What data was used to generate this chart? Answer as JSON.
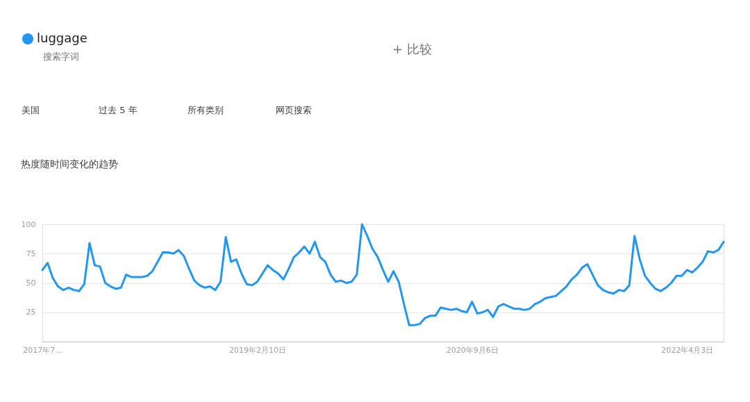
{
  "chart_data": {
    "type": "line",
    "title": "热度随时间变化的趋势",
    "x": [
      "2017-07-16",
      "2017-07-30",
      "2017-08-13",
      "2017-08-27",
      "2017-09-10",
      "2017-09-24",
      "2017-10-08",
      "2017-10-22",
      "2017-11-05",
      "2017-11-19",
      "2017-12-03",
      "2017-12-17",
      "2017-12-31",
      "2018-01-14",
      "2018-01-28",
      "2018-02-11",
      "2018-02-25",
      "2018-03-11",
      "2018-03-25",
      "2018-04-08",
      "2018-04-22",
      "2018-05-06",
      "2018-05-20",
      "2018-06-03",
      "2018-06-17",
      "2018-07-01",
      "2018-07-15",
      "2018-07-29",
      "2018-08-12",
      "2018-08-26",
      "2018-09-09",
      "2018-09-23",
      "2018-10-07",
      "2018-10-21",
      "2018-11-04",
      "2018-11-18",
      "2018-12-02",
      "2018-12-16",
      "2018-12-30",
      "2019-01-13",
      "2019-01-27",
      "2019-02-10",
      "2019-02-24",
      "2019-03-10",
      "2019-03-24",
      "2019-04-07",
      "2019-04-21",
      "2019-05-05",
      "2019-05-19",
      "2019-06-02",
      "2019-06-16",
      "2019-06-30",
      "2019-07-14",
      "2019-07-28",
      "2019-08-11",
      "2019-08-25",
      "2019-09-08",
      "2019-09-22",
      "2019-10-06",
      "2019-10-20",
      "2019-11-03",
      "2019-11-17",
      "2019-12-01",
      "2019-12-15",
      "2019-12-29",
      "2020-01-12",
      "2020-01-26",
      "2020-02-09",
      "2020-02-23",
      "2020-03-08",
      "2020-03-22",
      "2020-04-05",
      "2020-04-19",
      "2020-05-03",
      "2020-05-17",
      "2020-05-31",
      "2020-06-14",
      "2020-06-28",
      "2020-07-12",
      "2020-07-26",
      "2020-08-09",
      "2020-08-23",
      "2020-09-06",
      "2020-09-20",
      "2020-10-04",
      "2020-10-18",
      "2020-11-01",
      "2020-11-15",
      "2020-11-29",
      "2020-12-13",
      "2020-12-27",
      "2021-01-10",
      "2021-01-24",
      "2021-02-07",
      "2021-02-21",
      "2021-03-07",
      "2021-03-21",
      "2021-04-04",
      "2021-04-18",
      "2021-05-02",
      "2021-05-16",
      "2021-05-30",
      "2021-06-13",
      "2021-06-27",
      "2021-07-11",
      "2021-07-25",
      "2021-08-08",
      "2021-08-22",
      "2021-09-05",
      "2021-09-19",
      "2021-10-03",
      "2021-10-17",
      "2021-10-31",
      "2021-11-14",
      "2021-11-28",
      "2021-12-12",
      "2021-12-26",
      "2022-01-09",
      "2022-01-23",
      "2022-02-06",
      "2022-02-20",
      "2022-03-06",
      "2022-03-20",
      "2022-04-03",
      "2022-04-17",
      "2022-05-01",
      "2022-05-15",
      "2022-05-29",
      "2022-06-12",
      "2022-06-26",
      "2022-07-10"
    ],
    "series": [
      {
        "name": "luggage",
        "color": "#2196f3",
        "values": [
          61,
          67,
          54,
          47,
          44,
          46,
          44,
          43,
          49,
          84,
          65,
          64,
          50,
          47,
          45,
          46,
          57,
          55,
          55,
          55,
          56,
          60,
          68,
          76,
          76,
          75,
          78,
          73,
          62,
          52,
          48,
          46,
          47,
          44,
          51,
          89,
          68,
          70,
          58,
          49,
          48,
          51,
          58,
          65,
          61,
          58,
          53,
          62,
          72,
          76,
          81,
          75,
          85,
          72,
          68,
          57,
          51,
          52,
          50,
          51,
          57,
          100,
          90,
          79,
          72,
          61,
          51,
          60,
          51,
          32,
          14,
          14,
          15,
          20,
          22,
          22,
          29,
          28,
          27,
          28,
          26,
          25,
          34,
          24,
          25,
          27,
          21,
          30,
          32,
          30,
          28,
          28,
          27,
          28,
          32,
          34,
          37,
          38,
          39,
          43,
          47,
          53,
          57,
          63,
          66,
          57,
          48,
          44,
          42,
          41,
          44,
          43,
          48,
          90,
          70,
          56,
          50,
          45,
          43,
          46,
          50,
          56,
          56,
          61,
          59,
          63,
          68,
          77,
          76,
          78,
          85
        ]
      }
    ],
    "xlim": [
      "2017-07-16",
      "2022-07-10"
    ],
    "xticks": [
      {
        "value": "2017-07-16",
        "label": "2017年7..."
      },
      {
        "value": "2019-02-10",
        "label": "2019年2月10日"
      },
      {
        "value": "2020-09-06",
        "label": "2020年9月6日"
      },
      {
        "value": "2022-04-03",
        "label": "2022年4月3日"
      }
    ],
    "ylim": [
      0,
      100
    ],
    "yticks": [
      25,
      50,
      75,
      100
    ],
    "grid": "y",
    "legend": "top left",
    "marker": "none",
    "line_style": "solid",
    "annotations": [
      "搜索字词",
      "+ 比较",
      "美国",
      "过去 5 年",
      "所有类别",
      "网页搜索"
    ]
  }
}
